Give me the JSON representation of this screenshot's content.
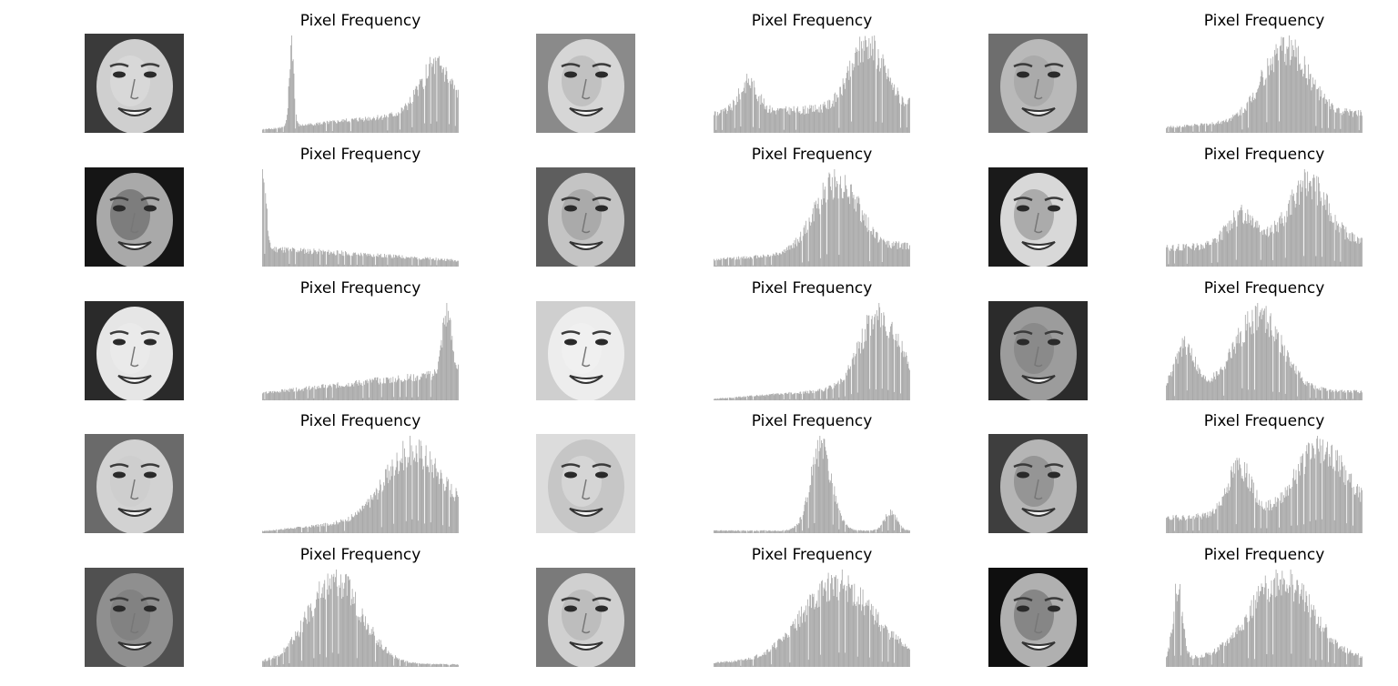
{
  "chart_data": {
    "type": "bar",
    "layout": "5 rows x 3 pairs (grayscale face image + pixel histogram)",
    "bar_color": "#a6a6a6",
    "xlim": [
      0,
      255
    ],
    "axes_visible": false,
    "panels": [
      {
        "title": "Pixel Frequency",
        "face_tone": "dark-left, bright face",
        "peaks": [
          {
            "x": 38,
            "h": 1.0,
            "w": 3
          },
          {
            "x": 225,
            "h": 0.55,
            "w": 20
          }
        ],
        "base": 0.04,
        "trend": 0.25
      },
      {
        "title": "Pixel Frequency",
        "face_tone": "medium, watermark",
        "peaks": [
          {
            "x": 45,
            "h": 0.45,
            "w": 12
          },
          {
            "x": 200,
            "h": 0.95,
            "w": 22
          }
        ],
        "base": 0.3,
        "trend": 0.1
      },
      {
        "title": "Pixel Frequency",
        "face_tone": "medium gray",
        "peaks": [
          {
            "x": 155,
            "h": 1.0,
            "w": 30
          }
        ],
        "base": 0.08,
        "trend": 0.2
      },
      {
        "title": "Pixel Frequency",
        "face_tone": "dark background",
        "peaks": [
          {
            "x": 2,
            "h": 0.8,
            "w": 3
          }
        ],
        "base": 0.18,
        "trend": -0.12
      },
      {
        "title": "Pixel Frequency",
        "face_tone": "medium",
        "peaks": [
          {
            "x": 160,
            "h": 1.0,
            "w": 28
          }
        ],
        "base": 0.1,
        "trend": 0.2
      },
      {
        "title": "Pixel Frequency",
        "face_tone": "high contrast",
        "peaks": [
          {
            "x": 100,
            "h": 0.5,
            "w": 20
          },
          {
            "x": 185,
            "h": 0.95,
            "w": 25
          }
        ],
        "base": 0.3,
        "trend": 0.1
      },
      {
        "title": "Pixel Frequency",
        "face_tone": "bright",
        "peaks": [
          {
            "x": 240,
            "h": 1.0,
            "w": 6
          }
        ],
        "base": 0.12,
        "trend": 0.35
      },
      {
        "title": "Pixel Frequency",
        "face_tone": "very bright",
        "peaks": [
          {
            "x": 215,
            "h": 1.0,
            "w": 25
          }
        ],
        "base": 0.02,
        "trend": 0.2
      },
      {
        "title": "Pixel Frequency",
        "face_tone": "medium, dark hair",
        "peaks": [
          {
            "x": 25,
            "h": 0.5,
            "w": 12
          },
          {
            "x": 120,
            "h": 0.85,
            "w": 30
          }
        ],
        "base": 0.15,
        "trend": -0.05
      },
      {
        "title": "Pixel Frequency",
        "face_tone": "light, low contrast",
        "peaks": [
          {
            "x": 195,
            "h": 1.0,
            "w": 35
          }
        ],
        "base": 0.03,
        "trend": 0.3
      },
      {
        "title": "Pixel Frequency",
        "face_tone": "light baby face",
        "peaks": [
          {
            "x": 140,
            "h": 1.0,
            "w": 14
          },
          {
            "x": 230,
            "h": 0.22,
            "w": 8
          }
        ],
        "base": 0.03,
        "trend": 0.0
      },
      {
        "title": "Pixel Frequency",
        "face_tone": "medium",
        "peaks": [
          {
            "x": 95,
            "h": 0.65,
            "w": 15
          },
          {
            "x": 200,
            "h": 0.85,
            "w": 30
          }
        ],
        "base": 0.2,
        "trend": 0.15
      },
      {
        "title": "Pixel Frequency",
        "face_tone": "medium, cap",
        "peaks": [
          {
            "x": 95,
            "h": 1.0,
            "w": 35
          }
        ],
        "base": 0.05,
        "trend": -0.02
      },
      {
        "title": "Pixel Frequency",
        "face_tone": "medium",
        "peaks": [
          {
            "x": 160,
            "h": 0.95,
            "w": 45
          }
        ],
        "base": 0.05,
        "trend": 0.1
      },
      {
        "title": "Pixel Frequency",
        "face_tone": "dark background",
        "peaks": [
          {
            "x": 15,
            "h": 0.9,
            "w": 6
          },
          {
            "x": 150,
            "h": 0.95,
            "w": 40
          }
        ],
        "base": 0.1,
        "trend": 0.0
      }
    ]
  }
}
